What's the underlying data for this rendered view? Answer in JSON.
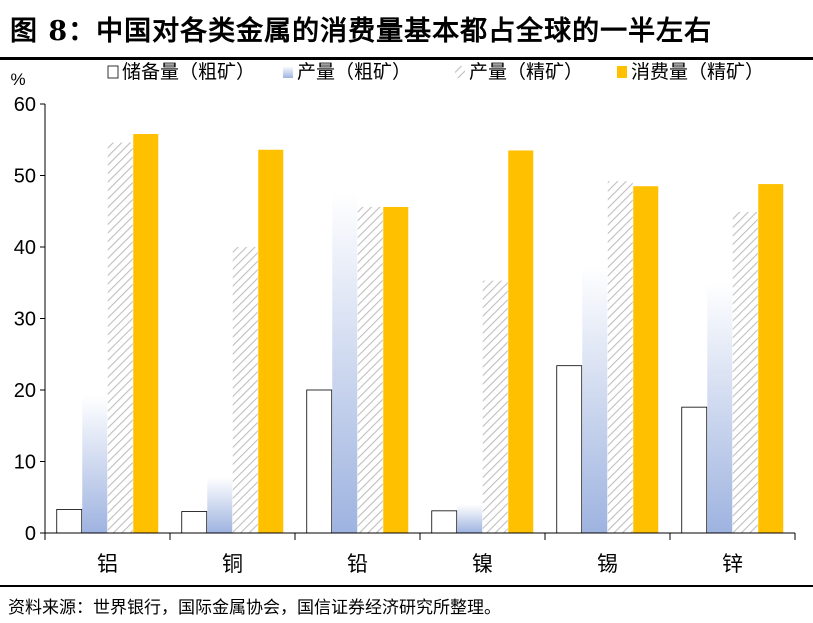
{
  "title": "图 8：中国对各类金属的消费量基本都占全球的一半左右",
  "source": "资料来源：世界银行，国际金属协会，国信证券经济研究所整理。",
  "chart_data": {
    "type": "bar",
    "ylabel": "%",
    "ylim": [
      0,
      60
    ],
    "yticks": [
      0,
      10,
      20,
      30,
      40,
      50,
      60
    ],
    "categories": [
      "铝",
      "铜",
      "铅",
      "镍",
      "锡",
      "锌"
    ],
    "series": [
      {
        "name": "储备量（粗矿）",
        "style": "white",
        "values": [
          3.3,
          3.0,
          20.0,
          3.1,
          23.4,
          17.6
        ]
      },
      {
        "name": "产量（粗矿）",
        "style": "blue-gradient",
        "values": [
          19.2,
          7.8,
          47.6,
          4.0,
          37.3,
          35.0
        ]
      },
      {
        "name": "产量（精矿）",
        "style": "hatch",
        "values": [
          54.6,
          40.0,
          45.6,
          35.3,
          49.2,
          44.9
        ]
      },
      {
        "name": "消费量（精矿）",
        "style": "gold",
        "values": [
          55.8,
          53.6,
          45.6,
          53.5,
          48.5,
          48.8
        ]
      }
    ],
    "legend": "top"
  },
  "colors": {
    "gold": "#ffc000",
    "blue_dark": "#9eb3e0",
    "blue_light": "#ffffff",
    "hatch": "#bfbfbf"
  }
}
